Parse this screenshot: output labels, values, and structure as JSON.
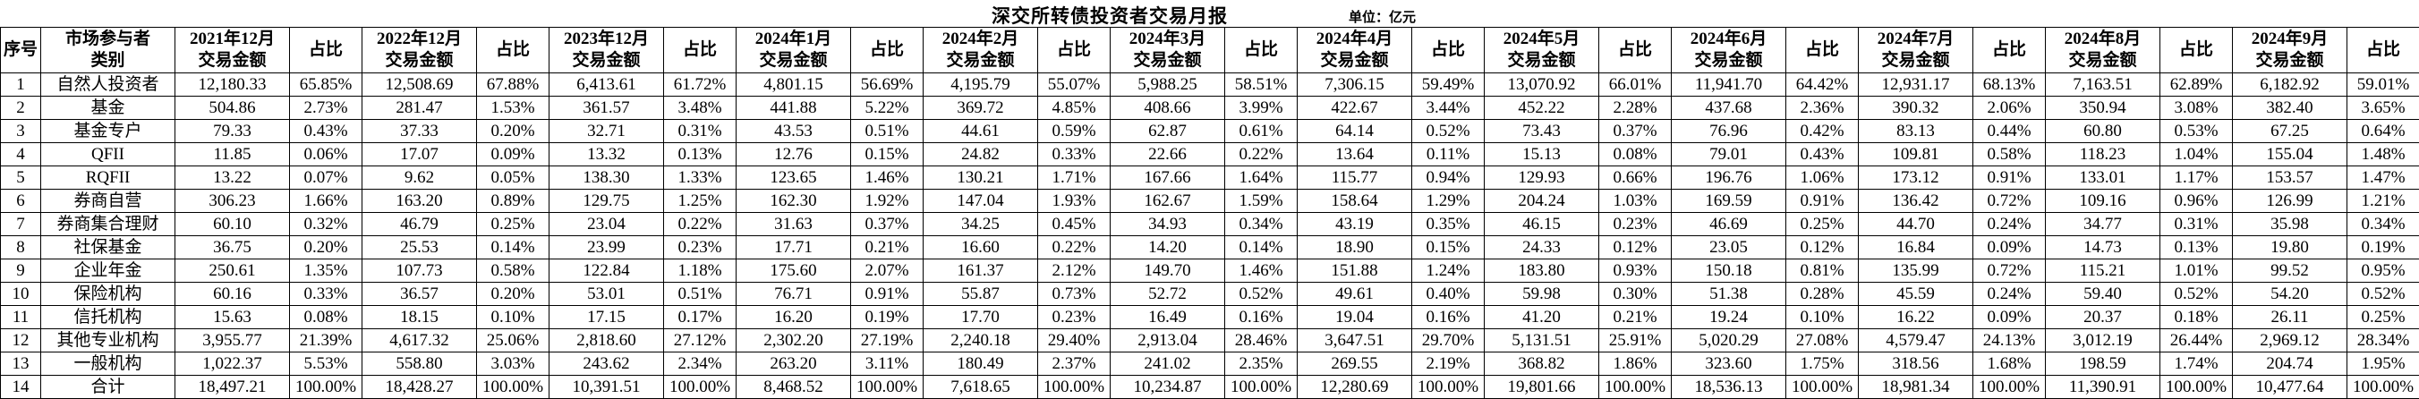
{
  "title": "深交所转债投资者交易月报",
  "unit_label": "单位：亿元",
  "table": {
    "index_header": "序号",
    "category_header": "市场参与者\n类别",
    "amount_label": "交易金额",
    "ratio_label": "占比",
    "months": [
      "2021年12月",
      "2022年12月",
      "2023年12月",
      "2024年1月",
      "2024年2月",
      "2024年3月",
      "2024年4月",
      "2024年5月",
      "2024年6月",
      "2024年7月",
      "2024年8月",
      "2024年9月"
    ],
    "rows": [
      {
        "no": "1",
        "category": "自然人投资者",
        "values": [
          "12,180.33",
          "65.85%",
          "12,508.69",
          "67.88%",
          "6,413.61",
          "61.72%",
          "4,801.15",
          "56.69%",
          "4,195.79",
          "55.07%",
          "5,988.25",
          "58.51%",
          "7,306.15",
          "59.49%",
          "13,070.92",
          "66.01%",
          "11,941.70",
          "64.42%",
          "12,931.17",
          "68.13%",
          "7,163.51",
          "62.89%",
          "6,182.92",
          "59.01%"
        ]
      },
      {
        "no": "2",
        "category": "基金",
        "values": [
          "504.86",
          "2.73%",
          "281.47",
          "1.53%",
          "361.57",
          "3.48%",
          "441.88",
          "5.22%",
          "369.72",
          "4.85%",
          "408.66",
          "3.99%",
          "422.67",
          "3.44%",
          "452.22",
          "2.28%",
          "437.68",
          "2.36%",
          "390.32",
          "2.06%",
          "350.94",
          "3.08%",
          "382.40",
          "3.65%"
        ]
      },
      {
        "no": "3",
        "category": "基金专户",
        "values": [
          "79.33",
          "0.43%",
          "37.33",
          "0.20%",
          "32.71",
          "0.31%",
          "43.53",
          "0.51%",
          "44.61",
          "0.59%",
          "62.87",
          "0.61%",
          "64.14",
          "0.52%",
          "73.43",
          "0.37%",
          "76.96",
          "0.42%",
          "83.13",
          "0.44%",
          "60.80",
          "0.53%",
          "67.25",
          "0.64%"
        ]
      },
      {
        "no": "4",
        "category": "QFII",
        "values": [
          "11.85",
          "0.06%",
          "17.07",
          "0.09%",
          "13.32",
          "0.13%",
          "12.76",
          "0.15%",
          "24.82",
          "0.33%",
          "22.66",
          "0.22%",
          "13.64",
          "0.11%",
          "15.13",
          "0.08%",
          "79.01",
          "0.43%",
          "109.81",
          "0.58%",
          "118.23",
          "1.04%",
          "155.04",
          "1.48%"
        ]
      },
      {
        "no": "5",
        "category": "RQFII",
        "values": [
          "13.22",
          "0.07%",
          "9.62",
          "0.05%",
          "138.30",
          "1.33%",
          "123.65",
          "1.46%",
          "130.21",
          "1.71%",
          "167.66",
          "1.64%",
          "115.77",
          "0.94%",
          "129.93",
          "0.66%",
          "196.76",
          "1.06%",
          "173.12",
          "0.91%",
          "133.01",
          "1.17%",
          "153.57",
          "1.47%"
        ]
      },
      {
        "no": "6",
        "category": "券商自营",
        "values": [
          "306.23",
          "1.66%",
          "163.20",
          "0.89%",
          "129.75",
          "1.25%",
          "162.30",
          "1.92%",
          "147.04",
          "1.93%",
          "162.67",
          "1.59%",
          "158.64",
          "1.29%",
          "204.24",
          "1.03%",
          "169.59",
          "0.91%",
          "136.42",
          "0.72%",
          "109.16",
          "0.96%",
          "126.99",
          "1.21%"
        ]
      },
      {
        "no": "7",
        "category": "券商集合理财",
        "values": [
          "60.10",
          "0.32%",
          "46.79",
          "0.25%",
          "23.04",
          "0.22%",
          "31.63",
          "0.37%",
          "34.25",
          "0.45%",
          "34.93",
          "0.34%",
          "43.19",
          "0.35%",
          "46.15",
          "0.23%",
          "46.69",
          "0.25%",
          "44.70",
          "0.24%",
          "34.77",
          "0.31%",
          "35.98",
          "0.34%"
        ]
      },
      {
        "no": "8",
        "category": "社保基金",
        "values": [
          "36.75",
          "0.20%",
          "25.53",
          "0.14%",
          "23.99",
          "0.23%",
          "17.71",
          "0.21%",
          "16.60",
          "0.22%",
          "14.20",
          "0.14%",
          "18.90",
          "0.15%",
          "24.33",
          "0.12%",
          "23.05",
          "0.12%",
          "16.84",
          "0.09%",
          "14.73",
          "0.13%",
          "19.80",
          "0.19%"
        ]
      },
      {
        "no": "9",
        "category": "企业年金",
        "values": [
          "250.61",
          "1.35%",
          "107.73",
          "0.58%",
          "122.84",
          "1.18%",
          "175.60",
          "2.07%",
          "161.37",
          "2.12%",
          "149.70",
          "1.46%",
          "151.88",
          "1.24%",
          "183.80",
          "0.93%",
          "150.18",
          "0.81%",
          "135.99",
          "0.72%",
          "115.21",
          "1.01%",
          "99.52",
          "0.95%"
        ]
      },
      {
        "no": "10",
        "category": "保险机构",
        "values": [
          "60.16",
          "0.33%",
          "36.57",
          "0.20%",
          "53.01",
          "0.51%",
          "76.71",
          "0.91%",
          "55.87",
          "0.73%",
          "52.72",
          "0.52%",
          "49.61",
          "0.40%",
          "59.98",
          "0.30%",
          "51.38",
          "0.28%",
          "45.59",
          "0.24%",
          "59.40",
          "0.52%",
          "54.20",
          "0.52%"
        ]
      },
      {
        "no": "11",
        "category": "信托机构",
        "values": [
          "15.63",
          "0.08%",
          "18.15",
          "0.10%",
          "17.15",
          "0.17%",
          "16.20",
          "0.19%",
          "17.70",
          "0.23%",
          "16.49",
          "0.16%",
          "19.04",
          "0.16%",
          "41.20",
          "0.21%",
          "19.24",
          "0.10%",
          "16.22",
          "0.09%",
          "20.37",
          "0.18%",
          "26.11",
          "0.25%"
        ]
      },
      {
        "no": "12",
        "category": "其他专业机构",
        "values": [
          "3,955.77",
          "21.39%",
          "4,617.32",
          "25.06%",
          "2,818.60",
          "27.12%",
          "2,302.20",
          "27.19%",
          "2,240.18",
          "29.40%",
          "2,913.04",
          "28.46%",
          "3,647.51",
          "29.70%",
          "5,131.51",
          "25.91%",
          "5,020.29",
          "27.08%",
          "4,579.47",
          "24.13%",
          "3,012.19",
          "26.44%",
          "2,969.12",
          "28.34%"
        ]
      },
      {
        "no": "13",
        "category": "一般机构",
        "values": [
          "1,022.37",
          "5.53%",
          "558.80",
          "3.03%",
          "243.62",
          "2.34%",
          "263.20",
          "3.11%",
          "180.49",
          "2.37%",
          "241.02",
          "2.35%",
          "269.55",
          "2.19%",
          "368.82",
          "1.86%",
          "323.60",
          "1.75%",
          "318.56",
          "1.68%",
          "198.59",
          "1.74%",
          "204.74",
          "1.95%"
        ]
      },
      {
        "no": "14",
        "category": "合计",
        "values": [
          "18,497.21",
          "100.00%",
          "18,428.27",
          "100.00%",
          "10,391.51",
          "100.00%",
          "8,468.52",
          "100.00%",
          "7,618.65",
          "100.00%",
          "10,234.87",
          "100.00%",
          "12,280.69",
          "100.00%",
          "19,801.66",
          "100.00%",
          "18,536.13",
          "100.00%",
          "18,981.34",
          "100.00%",
          "11,390.91",
          "100.00%",
          "10,477.64",
          "100.00%"
        ]
      }
    ]
  },
  "layout": {
    "col_width_index": 45,
    "col_width_category": 150,
    "col_width_amount": 128,
    "col_width_ratio": 81
  }
}
